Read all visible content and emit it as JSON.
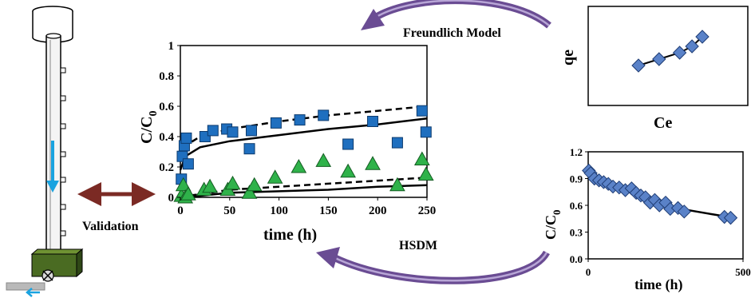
{
  "labels": {
    "freundlich_model": "Freundlich Model",
    "hsdm": "HSDM",
    "validation": "Validation"
  },
  "colors": {
    "arrow_purple": "#6a4c93",
    "arrow_purple_light": "#b8a6d6",
    "validation_arrow": "#7b2a24",
    "square_marker": "#1f6fbf",
    "triangle_marker": "#2fb24a",
    "diamond_marker": "#5a82c8",
    "flow_arrow": "#1aa3e0",
    "column_base": "#4a6b22"
  },
  "chart_data": [
    {
      "type": "scatter",
      "name": "main-breakthrough",
      "xlabel": "time (h)",
      "ylabel": "C/C",
      "ylabel_subscript": "0",
      "xlim": [
        0,
        250
      ],
      "ylim": [
        0,
        1
      ],
      "xticks": [
        "0",
        "50",
        "100",
        "150",
        "200",
        "250"
      ],
      "yticks": [
        "0",
        "0.2",
        "0.4",
        "0.6",
        "0.8",
        "1"
      ],
      "series": [
        {
          "marker": "square",
          "x": [
            1,
            2,
            4,
            6,
            8,
            25,
            33,
            47,
            53,
            70,
            72,
            97,
            121,
            145,
            170,
            195,
            220,
            245,
            249
          ],
          "y": [
            0.12,
            0.27,
            0.34,
            0.39,
            0.22,
            0.4,
            0.44,
            0.45,
            0.43,
            0.32,
            0.44,
            0.49,
            0.51,
            0.54,
            0.35,
            0.5,
            0.36,
            0.57,
            0.43
          ]
        },
        {
          "marker": "triangle",
          "x": [
            1,
            3,
            5,
            8,
            24,
            30,
            48,
            53,
            70,
            75,
            96,
            120,
            145,
            170,
            195,
            220,
            245,
            249
          ],
          "y": [
            0.01,
            0.08,
            0.0,
            0.02,
            0.05,
            0.07,
            0.05,
            0.09,
            0.03,
            0.08,
            0.13,
            0.2,
            0.24,
            0.17,
            0.22,
            0.08,
            0.25,
            0.15
          ]
        },
        {
          "line": "solid",
          "x": [
            0,
            5,
            20,
            50,
            100,
            150,
            200,
            250
          ],
          "y": [
            0.18,
            0.27,
            0.33,
            0.37,
            0.41,
            0.45,
            0.48,
            0.52
          ]
        },
        {
          "line": "dashed",
          "x": [
            0,
            5,
            20,
            50,
            100,
            150,
            200,
            250
          ],
          "y": [
            0.26,
            0.34,
            0.4,
            0.45,
            0.5,
            0.54,
            0.57,
            0.6
          ]
        },
        {
          "line": "solid",
          "x": [
            0,
            5,
            20,
            50,
            100,
            150,
            200,
            250
          ],
          "y": [
            0.0,
            0.0,
            0.01,
            0.03,
            0.04,
            0.05,
            0.07,
            0.08
          ]
        },
        {
          "line": "dashed",
          "x": [
            0,
            5,
            20,
            50,
            100,
            150,
            200,
            250
          ],
          "y": [
            0.0,
            0.01,
            0.02,
            0.05,
            0.07,
            0.09,
            0.11,
            0.13
          ]
        }
      ]
    },
    {
      "type": "scatter",
      "name": "freundlich-isotherm",
      "xlabel": "Ce",
      "ylabel": "qe",
      "series": [
        {
          "marker": "diamond",
          "x": [
            1,
            2,
            3,
            3.6,
            4.1
          ],
          "y": [
            1,
            1.4,
            1.8,
            2.2,
            2.8
          ]
        }
      ]
    },
    {
      "type": "scatter",
      "name": "hsdm-batch",
      "xlabel": "time (h)",
      "ylabel": "C/C",
      "ylabel_subscript": "0",
      "xlim": [
        0,
        500
      ],
      "ylim": [
        0,
        1.2
      ],
      "xticks": [
        "0",
        "500"
      ],
      "yticks": [
        "0.0",
        "0.3",
        "0.6",
        "0.9",
        "1.2"
      ],
      "series": [
        {
          "marker": "diamond",
          "x": [
            2,
            8,
            20,
            35,
            50,
            65,
            80,
            100,
            120,
            140,
            155,
            170,
            185,
            200,
            215,
            230,
            250,
            265,
            290,
            310,
            440,
            460
          ],
          "y": [
            0.99,
            0.96,
            0.9,
            0.88,
            0.86,
            0.84,
            0.81,
            0.8,
            0.77,
            0.79,
            0.74,
            0.71,
            0.69,
            0.63,
            0.66,
            0.6,
            0.63,
            0.56,
            0.57,
            0.53,
            0.47,
            0.46
          ]
        },
        {
          "line": "solid",
          "x": [
            0,
            50,
            100,
            150,
            200,
            250,
            300,
            350,
            400,
            470
          ],
          "y": [
            1.0,
            0.88,
            0.8,
            0.72,
            0.66,
            0.61,
            0.56,
            0.53,
            0.5,
            0.46
          ]
        }
      ]
    }
  ]
}
